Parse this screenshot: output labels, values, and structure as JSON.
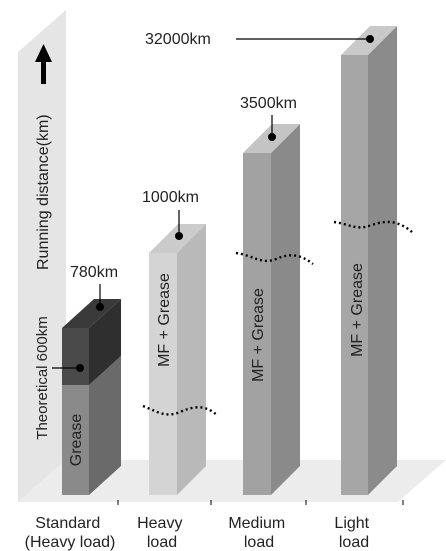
{
  "chart_data": {
    "type": "bar",
    "title": "",
    "xlabel": "",
    "ylabel": "Running distance(km)",
    "axis_break": true,
    "categories": [
      "Standard\n(Heavy load)",
      "Heavy\nload",
      "Medium\nload",
      "Light\nload"
    ],
    "value_labels": [
      "780km",
      "1000km",
      "3500km",
      "32000km"
    ],
    "values": [
      780,
      1000,
      3500,
      32000
    ],
    "bar_texts": [
      "Grease",
      "MF + Grease",
      "MF + Grease",
      "MF + Grease"
    ],
    "standard_segment": {
      "label": "Theoretical 600km",
      "value": 600
    },
    "colors": {
      "wall": "#e5e5e5",
      "floor": "#ececec",
      "bar1_front": "#8a8a8a",
      "bar1_top_segment": "#4a4a4a",
      "bar2_front": "#d4d4d4",
      "bar3_front": "#a2a2a2",
      "bar4_front": "#a6a6a6"
    }
  }
}
